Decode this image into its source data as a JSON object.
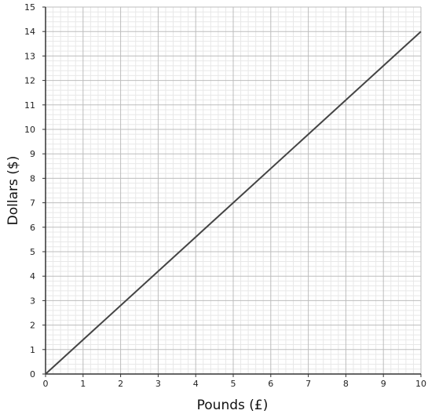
{
  "chart_data": {
    "type": "line",
    "xlabel": "Pounds (£)",
    "ylabel": "Dollars ($)",
    "xlim": [
      0,
      10
    ],
    "ylim": [
      0,
      15
    ],
    "x_ticks": [
      "0",
      "1",
      "2",
      "3",
      "4",
      "5",
      "6",
      "7",
      "8",
      "9",
      "10"
    ],
    "y_ticks": [
      "0",
      "1",
      "2",
      "3",
      "4",
      "5",
      "6",
      "7",
      "8",
      "9",
      "10",
      "11",
      "12",
      "13",
      "14",
      "15"
    ],
    "grid": true,
    "minor_grid": true,
    "series": [
      {
        "x": [
          0,
          10
        ],
        "y": [
          0,
          14
        ],
        "color": "#444444"
      }
    ]
  }
}
